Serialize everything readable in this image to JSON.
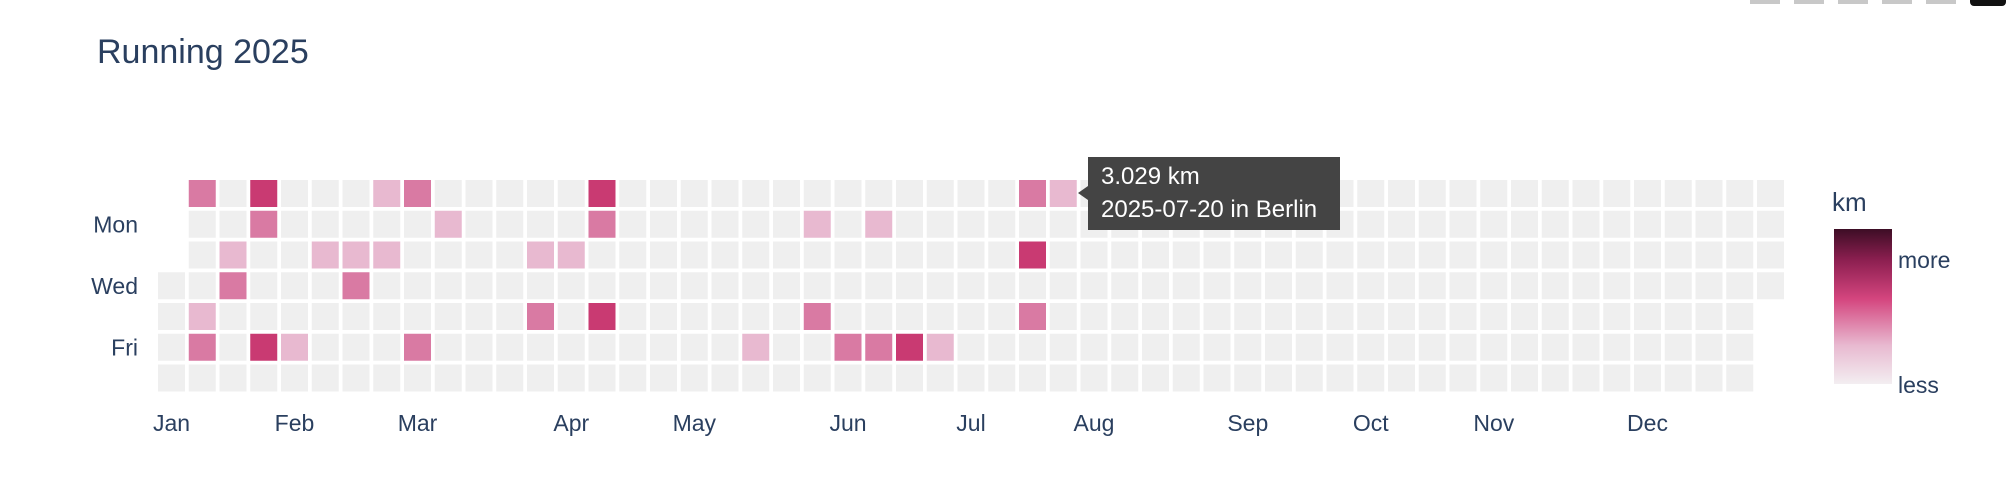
{
  "chart_data": {
    "type": "heatmap",
    "title": "Running 2025",
    "year": 2025,
    "y_tick_labels": [
      "Mon",
      "Wed",
      "Fri"
    ],
    "x_tick_labels": [
      "Jan",
      "Feb",
      "Mar",
      "Apr",
      "May",
      "Jun",
      "Jul",
      "Aug",
      "Sep",
      "Oct",
      "Nov",
      "Dec"
    ],
    "colorbar": {
      "title": "km",
      "high_label": "more",
      "low_label": "less"
    },
    "empty_color": "#efefef",
    "colorscale": [
      "#efefef",
      "#e8b9d0",
      "#d97aa3",
      "#c93a72",
      "#8c1f50",
      "#4a1030"
    ],
    "grid": false,
    "legend": "colorbar right",
    "runs": [
      {
        "date": "2025-01-05",
        "km": 5.0
      },
      {
        "date": "2025-01-09",
        "km": 1.8
      },
      {
        "date": "2025-01-10",
        "km": 5.2
      },
      {
        "date": "2025-01-14",
        "km": 1.5
      },
      {
        "date": "2025-01-15",
        "km": 4.6
      },
      {
        "date": "2025-01-19",
        "km": 8.0
      },
      {
        "date": "2025-01-20",
        "km": 5.0
      },
      {
        "date": "2025-01-24",
        "km": 8.2
      },
      {
        "date": "2025-01-31",
        "km": 2.0
      },
      {
        "date": "2025-02-04",
        "km": 1.6
      },
      {
        "date": "2025-02-11",
        "km": 1.7
      },
      {
        "date": "2025-02-12",
        "km": 5.3
      },
      {
        "date": "2025-02-16",
        "km": 1.9
      },
      {
        "date": "2025-02-18",
        "km": 1.5
      },
      {
        "date": "2025-02-23",
        "km": 5.1
      },
      {
        "date": "2025-02-28",
        "km": 5.0
      },
      {
        "date": "2025-03-03",
        "km": 1.8
      },
      {
        "date": "2025-03-25",
        "km": 1.6
      },
      {
        "date": "2025-03-27",
        "km": 5.0
      },
      {
        "date": "2025-04-01",
        "km": 1.7
      },
      {
        "date": "2025-04-06",
        "km": 8.1
      },
      {
        "date": "2025-04-07",
        "km": 5.2
      },
      {
        "date": "2025-04-10",
        "km": 8.3
      },
      {
        "date": "2025-05-16",
        "km": 1.9
      },
      {
        "date": "2025-05-26",
        "km": 1.6
      },
      {
        "date": "2025-05-29",
        "km": 5.0
      },
      {
        "date": "2025-06-06",
        "km": 5.1
      },
      {
        "date": "2025-06-09",
        "km": 1.5
      },
      {
        "date": "2025-06-13",
        "km": 5.2
      },
      {
        "date": "2025-06-20",
        "km": 8.4
      },
      {
        "date": "2025-06-27",
        "km": 1.8
      },
      {
        "date": "2025-07-13",
        "km": 5.0
      },
      {
        "date": "2025-07-15",
        "km": 8.0
      },
      {
        "date": "2025-07-17",
        "km": 5.1
      },
      {
        "date": "2025-07-20",
        "km": 3.029
      }
    ],
    "tooltip": {
      "line1": "3.029 km",
      "line2": "2025-07-20 in Berlin"
    }
  }
}
